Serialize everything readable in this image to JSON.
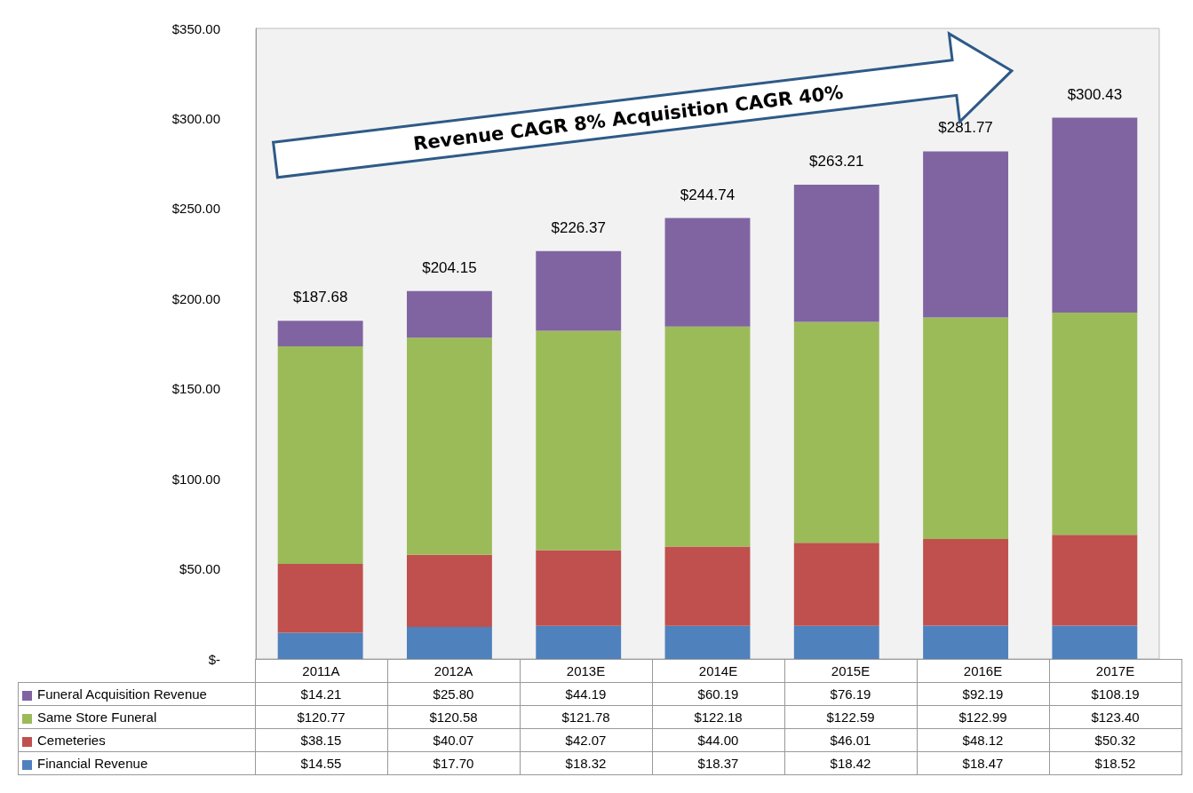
{
  "chart_data": {
    "type": "bar",
    "stacked": true,
    "categories": [
      "2011A",
      "2012A",
      "2013E",
      "2014E",
      "2015E",
      "2016E",
      "2017E"
    ],
    "series": [
      {
        "name": "Financial Revenue",
        "color": "#4f81bd",
        "values": [
          14.55,
          17.7,
          18.32,
          18.37,
          18.42,
          18.47,
          18.52
        ],
        "value_labels": [
          "$14.55",
          "$17.70",
          "$18.32",
          "$18.37",
          "$18.42",
          "$18.47",
          "$18.52"
        ]
      },
      {
        "name": "Cemeteries",
        "color": "#c0504d",
        "values": [
          38.15,
          40.07,
          42.07,
          44.0,
          46.01,
          48.12,
          50.32
        ],
        "value_labels": [
          "$38.15",
          "$40.07",
          "$42.07",
          "$44.00",
          "$46.01",
          "$48.12",
          "$50.32"
        ]
      },
      {
        "name": "Same Store Funeral",
        "color": "#9bbb59",
        "values": [
          120.77,
          120.58,
          121.78,
          122.18,
          122.59,
          122.99,
          123.4
        ],
        "value_labels": [
          "$120.77",
          "$120.58",
          "$121.78",
          "$122.18",
          "$122.59",
          "$122.99",
          "$123.40"
        ]
      },
      {
        "name": "Funeral Acquisition Revenue",
        "color": "#8064a2",
        "values": [
          14.21,
          25.8,
          44.19,
          60.19,
          76.19,
          92.19,
          108.19
        ],
        "value_labels": [
          "$14.21",
          "$25.80",
          "$44.19",
          "$60.19",
          "$76.19",
          "$92.19",
          "$108.19"
        ]
      }
    ],
    "totals": [
      "$187.68",
      "$204.15",
      "$226.37",
      "$244.74",
      "$263.21",
      "$281.77",
      "$300.43"
    ],
    "ylim": [
      0,
      350
    ],
    "yticks": [
      {
        "value": 0,
        "label": "$-"
      },
      {
        "value": 50,
        "label": "$50.00"
      },
      {
        "value": 100,
        "label": "$100.00"
      },
      {
        "value": 150,
        "label": "$150.00"
      },
      {
        "value": 200,
        "label": "$200.00"
      },
      {
        "value": 250,
        "label": "$250.00"
      },
      {
        "value": 300,
        "label": "$300.00"
      },
      {
        "value": 350,
        "label": "$350.00"
      }
    ],
    "grid": false,
    "legend": "bottom",
    "annotations": [
      "Revenue CAGR 8% Acquisition CAGR 40%"
    ]
  }
}
